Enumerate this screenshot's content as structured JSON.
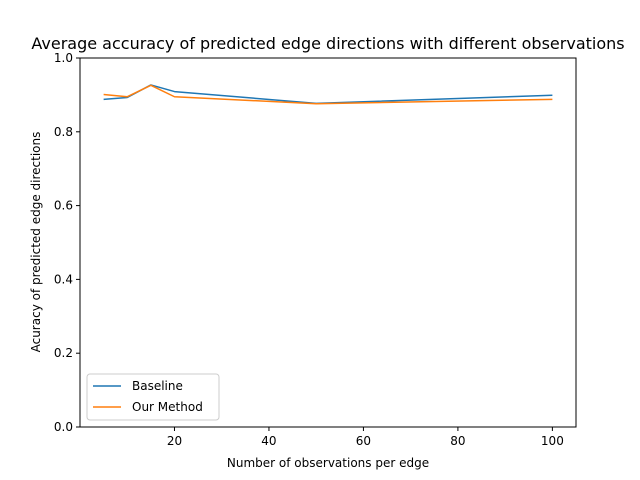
{
  "chart_data": {
    "type": "line",
    "title": "Average accuracy of predicted edge directions with different observations",
    "xlabel": "Number of observations per edge",
    "ylabel": "Acuracy of predicted edge directions",
    "xlim": [
      0,
      105
    ],
    "ylim": [
      0,
      1.0
    ],
    "xticks": [
      20,
      40,
      60,
      80,
      100
    ],
    "yticks": [
      0.0,
      0.2,
      0.4,
      0.6,
      0.8,
      1.0
    ],
    "xtick_labels": [
      "20",
      "40",
      "60",
      "80",
      "100"
    ],
    "ytick_labels": [
      "0.0",
      "0.2",
      "0.4",
      "0.6",
      "0.8",
      "1.0"
    ],
    "grid": false,
    "legend": "lower-left",
    "series": [
      {
        "name": "Baseline",
        "color": "#1f77b4",
        "x": [
          5,
          10,
          15,
          20,
          50,
          100
        ],
        "y": [
          0.888,
          0.893,
          0.927,
          0.909,
          0.877,
          0.899
        ]
      },
      {
        "name": "Our Method",
        "color": "#ff7f0e",
        "x": [
          5,
          10,
          15,
          20,
          50,
          100
        ],
        "y": [
          0.901,
          0.895,
          0.926,
          0.895,
          0.876,
          0.888
        ]
      }
    ]
  }
}
